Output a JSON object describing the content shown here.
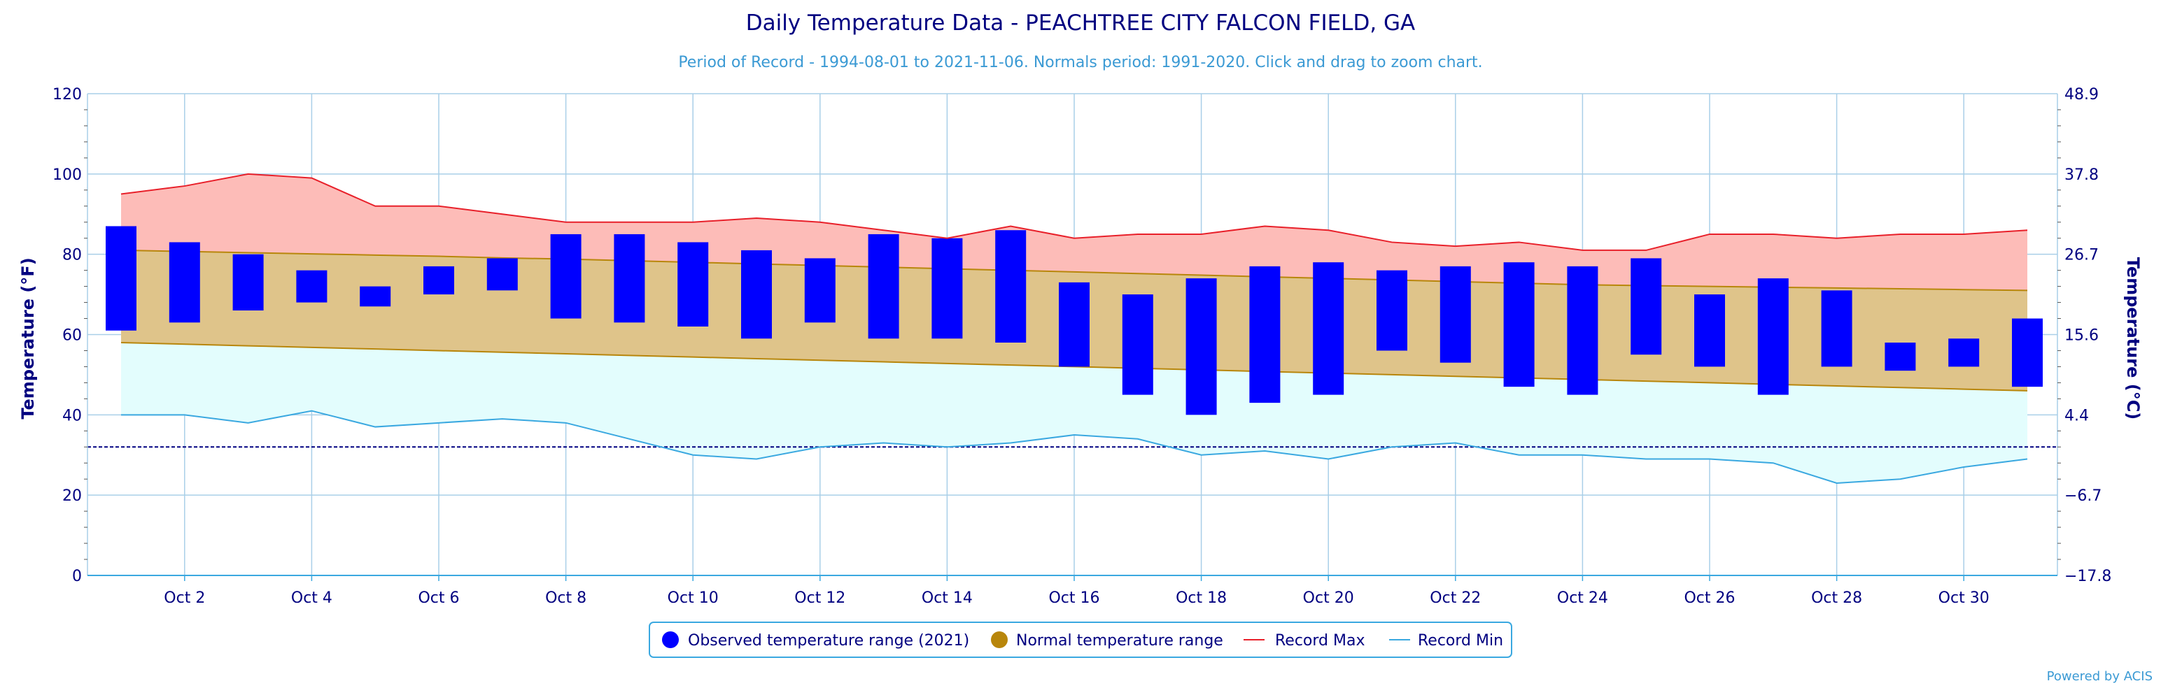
{
  "chart_data": {
    "type": "bar",
    "title": "Daily Temperature Data - PEACHTREE CITY FALCON FIELD, GA",
    "subtitle": "Period of Record - 1994-08-01 to 2021-11-06. Normals period: 1991-2020. Click and drag to zoom chart.",
    "ylabel": "Temperature (°F)",
    "ylabel_right": "Temperature (°C)",
    "ylim": [
      0,
      120
    ],
    "y_ticks": [
      0,
      20,
      40,
      60,
      80,
      100,
      120
    ],
    "y_right_ticks": [
      "−17.8",
      "−6.7",
      "4.4",
      "15.6",
      "26.7",
      "37.8",
      "48.9"
    ],
    "x_tick_labels": [
      "Oct 2",
      "Oct 4",
      "Oct 6",
      "Oct 8",
      "Oct 10",
      "Oct 12",
      "Oct 14",
      "Oct 16",
      "Oct 18",
      "Oct 20",
      "Oct 22",
      "Oct 24",
      "Oct 26",
      "Oct 28",
      "Oct 30"
    ],
    "days": [
      1,
      2,
      3,
      4,
      5,
      6,
      7,
      8,
      9,
      10,
      11,
      12,
      13,
      14,
      15,
      16,
      17,
      18,
      19,
      20,
      21,
      22,
      23,
      24,
      25,
      26,
      27,
      28,
      29,
      30,
      31
    ],
    "freezing_line": 32,
    "series": [
      {
        "name": "Observed temperature range (2021)",
        "color": "#0000ff",
        "low": [
          61,
          63,
          66,
          68,
          67,
          70,
          71,
          64,
          63,
          62,
          59,
          63,
          59,
          59,
          58,
          52,
          45,
          40,
          43,
          45,
          56,
          53,
          47,
          45,
          55,
          52,
          45,
          52,
          51,
          52,
          47
        ],
        "high": [
          87,
          83,
          80,
          76,
          72,
          77,
          79,
          85,
          85,
          83,
          81,
          79,
          85,
          84,
          86,
          73,
          70,
          74,
          77,
          78,
          76,
          77,
          78,
          77,
          79,
          70,
          74,
          71,
          58,
          59,
          64
        ]
      },
      {
        "name": "Normal temperature range",
        "color": "#b8860b",
        "low": [
          58,
          57.6,
          57.2,
          56.8,
          56.4,
          56,
          55.6,
          55.2,
          54.8,
          54.4,
          54,
          53.6,
          53.2,
          52.8,
          52.4,
          52,
          51.6,
          51.2,
          50.8,
          50.4,
          50,
          49.6,
          49.2,
          48.8,
          48.4,
          48,
          47.6,
          47.2,
          46.8,
          46.4,
          46
        ],
        "high": [
          81,
          80.7,
          80.4,
          80.1,
          79.8,
          79.5,
          79.1,
          78.8,
          78.4,
          78,
          77.6,
          77.2,
          76.8,
          76.4,
          76,
          75.6,
          75.2,
          74.8,
          74.4,
          74,
          73.6,
          73.2,
          72.8,
          72.4,
          72.2,
          72,
          71.8,
          71.6,
          71.4,
          71.2,
          71
        ]
      },
      {
        "name": "Record Max",
        "color": "#e8202a",
        "values": [
          95,
          97,
          100,
          99,
          92,
          92,
          90,
          88,
          88,
          88,
          89,
          88,
          86,
          84,
          87,
          84,
          85,
          85,
          87,
          86,
          83,
          82,
          83,
          81,
          81,
          85,
          85,
          84,
          85,
          85,
          86
        ]
      },
      {
        "name": "Record Min",
        "color": "#3aa8e0",
        "values": [
          40,
          40,
          38,
          41,
          37,
          38,
          39,
          38,
          34,
          30,
          29,
          32,
          33,
          32,
          33,
          35,
          34,
          30,
          31,
          29,
          32,
          33,
          30,
          30,
          29,
          29,
          28,
          23,
          24,
          27,
          29
        ]
      }
    ]
  },
  "legend": {
    "observed": "Observed temperature range (2021)",
    "normal": "Normal temperature range",
    "record_max": "Record Max",
    "record_min": "Record Min"
  },
  "credit": "Powered by ACIS"
}
